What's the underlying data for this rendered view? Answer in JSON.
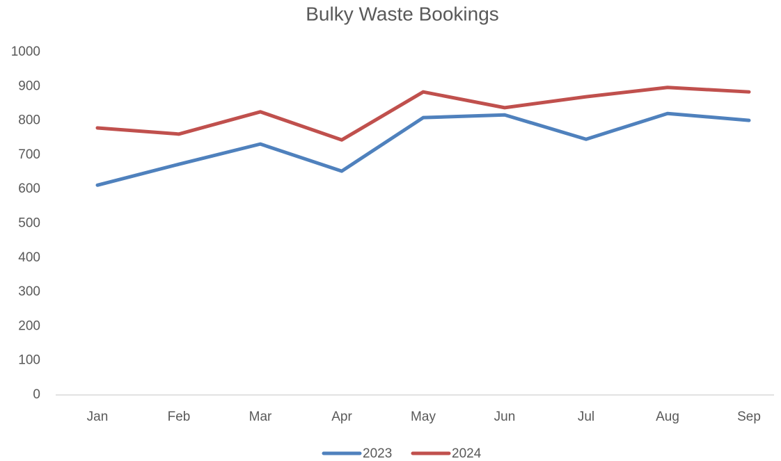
{
  "chart_data": {
    "type": "line",
    "title": "Bulky Waste Bookings",
    "categories": [
      "Jan",
      "Feb",
      "Mar",
      "Apr",
      "May",
      "Jun",
      "Jul",
      "Aug",
      "Sep"
    ],
    "series": [
      {
        "name": "2023",
        "color": "#4f81bd",
        "values": [
          612,
          673,
          732,
          653,
          809,
          817,
          746,
          821,
          801
        ]
      },
      {
        "name": "2024",
        "color": "#c0504d",
        "values": [
          779,
          761,
          826,
          744,
          884,
          838,
          870,
          897,
          884
        ]
      }
    ],
    "ylim": [
      0,
      1000
    ],
    "yticks": [
      0,
      100,
      200,
      300,
      400,
      500,
      600,
      700,
      800,
      900,
      1000
    ],
    "grid": false,
    "legend": "bottom"
  }
}
